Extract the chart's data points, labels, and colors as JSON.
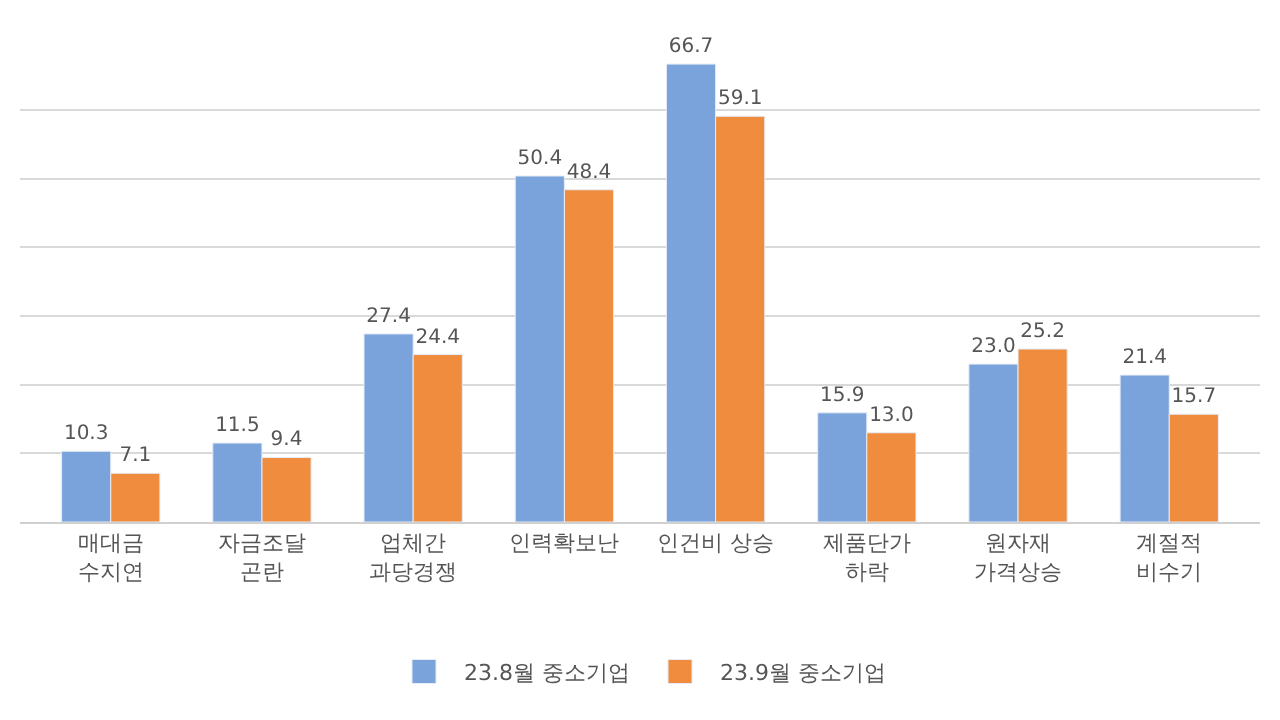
{
  "chart_data": {
    "type": "bar",
    "categories": [
      "매대금\n수지연",
      "자금조달\n곤란",
      "업체간\n과당경쟁",
      "인력확보난",
      "인건비 상승",
      "제품단가\n하락",
      "원자재\n가격상승",
      "계절적\n비수기"
    ],
    "series": [
      {
        "name": "23.8월 중소기업",
        "color": "#7aa3dc",
        "values": [
          10.3,
          11.5,
          27.4,
          50.4,
          66.7,
          15.9,
          23.0,
          21.4
        ],
        "value_labels": [
          "10.3",
          "11.5",
          "27.4",
          "50.4",
          "66.7",
          "15.9",
          "23.0",
          "21.4"
        ]
      },
      {
        "name": "23.9월 중소기업",
        "color": "#f08c3e",
        "values": [
          7.1,
          9.4,
          24.4,
          48.4,
          59.1,
          13.0,
          25.2,
          15.7
        ],
        "value_labels": [
          "7.1",
          "9.4",
          "24.4",
          "48.4",
          "59.1",
          "13.0",
          "25.2",
          "15.7"
        ]
      }
    ],
    "tick_labels": "x",
    "grid": "y",
    "legend": "bottom"
  }
}
